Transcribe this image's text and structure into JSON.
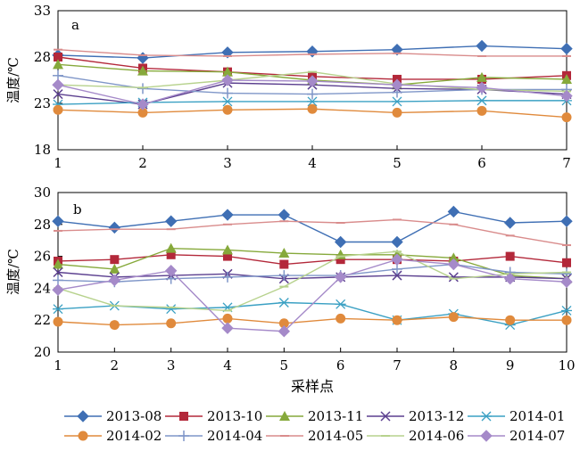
{
  "chart_data": [
    {
      "type": "line",
      "panel_label": "a",
      "ylabel": "温度/℃",
      "xlabel": "",
      "x": [
        1,
        2,
        3,
        4,
        5,
        6,
        7
      ],
      "xticks": [
        "1",
        "2",
        "3",
        "4",
        "5",
        "6",
        "7"
      ],
      "ylim": [
        18,
        33
      ],
      "yticks": [
        "18",
        "23",
        "28",
        "33"
      ],
      "grid": false,
      "series": [
        {
          "name": "2013-08",
          "values": [
            28.2,
            27.9,
            28.5,
            28.6,
            28.8,
            29.2,
            28.9
          ]
        },
        {
          "name": "2013-10",
          "values": [
            28.0,
            26.8,
            26.4,
            25.9,
            25.6,
            25.6,
            26.0
          ]
        },
        {
          "name": "2013-11",
          "values": [
            27.2,
            26.5,
            26.4,
            25.5,
            25.0,
            25.8,
            25.6
          ]
        },
        {
          "name": "2013-12",
          "values": [
            24.0,
            22.9,
            25.2,
            25.0,
            24.6,
            24.5,
            24.0
          ]
        },
        {
          "name": "2014-01",
          "values": [
            22.9,
            23.1,
            23.2,
            23.2,
            23.2,
            23.3,
            23.3
          ]
        },
        {
          "name": "2014-02",
          "values": [
            22.3,
            22.0,
            22.3,
            22.4,
            22.0,
            22.2,
            21.5
          ]
        },
        {
          "name": "2014-04",
          "values": [
            26.0,
            24.6,
            24.1,
            24.0,
            24.2,
            24.5,
            24.5
          ]
        },
        {
          "name": "2014-05",
          "values": [
            28.8,
            28.2,
            28.1,
            28.3,
            28.4,
            28.1,
            28.1
          ]
        },
        {
          "name": "2014-06",
          "values": [
            25.0,
            24.7,
            25.5,
            26.4,
            25.1,
            24.5,
            24.3
          ]
        },
        {
          "name": "2014-07",
          "values": [
            25.0,
            22.9,
            25.5,
            25.4,
            25.0,
            24.7,
            23.8
          ]
        }
      ]
    },
    {
      "type": "line",
      "panel_label": "b",
      "ylabel": "温度/℃",
      "xlabel": "采样点",
      "x": [
        1,
        2,
        3,
        4,
        5,
        6,
        7,
        8,
        9,
        10
      ],
      "xticks": [
        "1",
        "2",
        "3",
        "4",
        "5",
        "6",
        "7",
        "8",
        "9",
        "10"
      ],
      "ylim": [
        20,
        30
      ],
      "yticks": [
        "20",
        "22",
        "24",
        "26",
        "28",
        "30"
      ],
      "grid": false,
      "series": [
        {
          "name": "2013-08",
          "values": [
            28.2,
            27.8,
            28.2,
            28.6,
            28.6,
            26.9,
            26.9,
            28.8,
            28.1,
            28.2
          ]
        },
        {
          "name": "2013-10",
          "values": [
            25.7,
            25.8,
            26.1,
            26.0,
            25.5,
            25.8,
            25.8,
            25.7,
            26.0,
            25.6
          ]
        },
        {
          "name": "2013-11",
          "values": [
            25.5,
            25.2,
            26.5,
            26.4,
            26.2,
            26.1,
            26.1,
            25.9,
            24.8,
            24.6
          ]
        },
        {
          "name": "2013-12",
          "values": [
            25.0,
            24.7,
            24.8,
            24.9,
            24.6,
            24.7,
            24.8,
            24.7,
            24.7,
            24.6
          ]
        },
        {
          "name": "2014-01",
          "values": [
            22.7,
            22.9,
            22.7,
            22.8,
            23.1,
            23.0,
            22.0,
            22.4,
            21.7,
            22.6
          ]
        },
        {
          "name": "2014-02",
          "values": [
            21.9,
            21.7,
            21.8,
            22.1,
            21.8,
            22.1,
            22.0,
            22.2,
            22.0,
            22.0
          ]
        },
        {
          "name": "2014-04",
          "values": [
            24.5,
            24.4,
            24.6,
            24.7,
            24.8,
            24.8,
            25.2,
            25.5,
            25.0,
            24.9
          ]
        },
        {
          "name": "2014-05",
          "values": [
            27.6,
            27.7,
            27.7,
            28.0,
            28.2,
            28.1,
            28.3,
            28.0,
            27.3,
            26.7
          ]
        },
        {
          "name": "2014-06",
          "values": [
            24.0,
            22.9,
            22.8,
            22.6,
            24.1,
            26.0,
            26.3,
            24.6,
            24.9,
            25.0
          ]
        },
        {
          "name": "2014-07",
          "values": [
            23.9,
            24.5,
            25.1,
            21.5,
            21.3,
            24.7,
            25.8,
            25.5,
            24.6,
            24.4
          ]
        }
      ]
    }
  ],
  "legend": {
    "placement": "bottom",
    "entries": [
      {
        "label": "2013-08",
        "color": "#3f6fb4",
        "marker": "diamond"
      },
      {
        "label": "2013-10",
        "color": "#b3283a",
        "marker": "square"
      },
      {
        "label": "2013-11",
        "color": "#86a93b",
        "marker": "triangle"
      },
      {
        "label": "2013-12",
        "color": "#5b3f8f",
        "marker": "x"
      },
      {
        "label": "2014-01",
        "color": "#3aa0c3",
        "marker": "asterisk"
      },
      {
        "label": "2014-02",
        "color": "#e08a3c",
        "marker": "circle"
      },
      {
        "label": "2014-04",
        "color": "#7f96c8",
        "marker": "plus"
      },
      {
        "label": "2014-05",
        "color": "#d98c8c",
        "marker": "dash"
      },
      {
        "label": "2014-06",
        "color": "#b7d28d",
        "marker": "dash"
      },
      {
        "label": "2014-07",
        "color": "#a58ac9",
        "marker": "diamond"
      }
    ]
  }
}
